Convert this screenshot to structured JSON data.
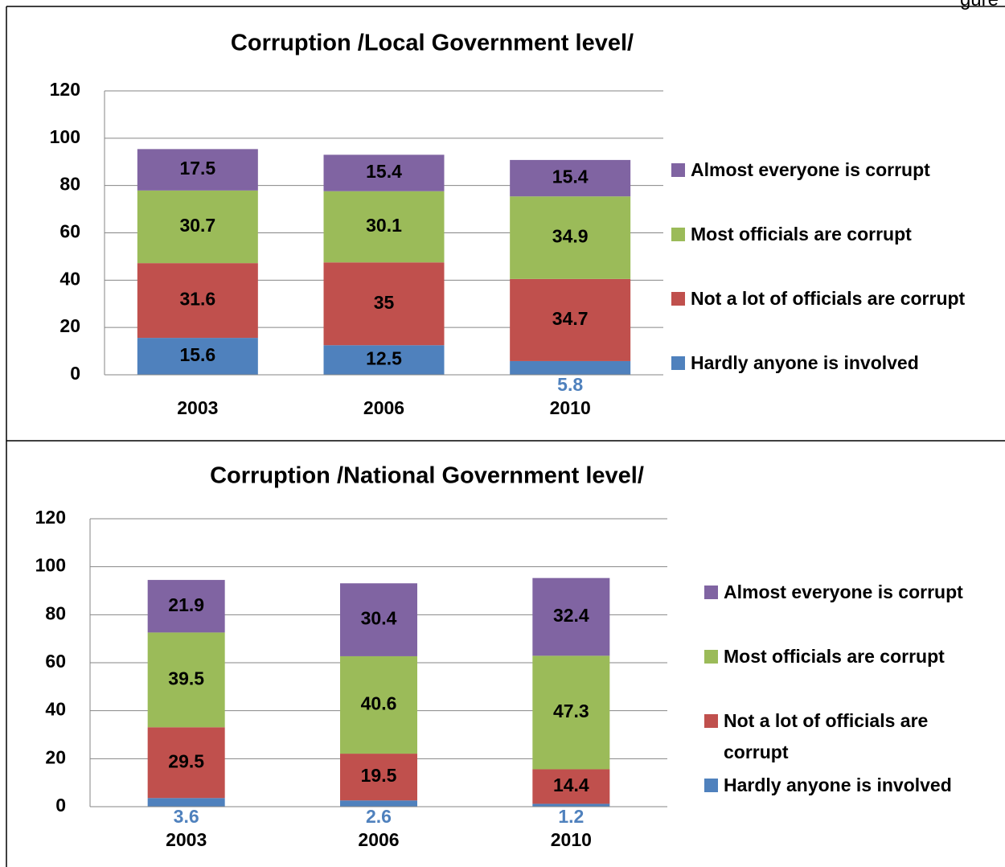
{
  "page_label": "gure",
  "chart_data": [
    {
      "type": "stacked_bar",
      "title": "Corruption /Local Government level/",
      "categories": [
        "2003",
        "2006",
        "2010"
      ],
      "series": [
        {
          "name": "Hardly anyone is involved",
          "color": "#4f81bd",
          "values": [
            15.6,
            12.5,
            5.8
          ]
        },
        {
          "name": "Not a lot of officials are corrupt",
          "color": "#c0504d",
          "values": [
            31.6,
            35,
            34.7
          ]
        },
        {
          "name": "Most officials are corrupt",
          "color": "#9bbb59",
          "values": [
            30.7,
            30.1,
            34.9
          ]
        },
        {
          "name": "Almost everyone is corrupt",
          "color": "#8064a2",
          "values": [
            17.5,
            15.4,
            15.4
          ]
        }
      ],
      "ylim": [
        0,
        120
      ],
      "yticks": [
        0,
        20,
        40,
        60,
        80,
        100,
        120
      ],
      "grid": true,
      "legend": "right"
    },
    {
      "type": "stacked_bar",
      "title": "Corruption /National Government level/",
      "categories": [
        "2003",
        "2006",
        "2010"
      ],
      "series": [
        {
          "name": "Hardly anyone is involved",
          "color": "#4f81bd",
          "values": [
            3.6,
            2.6,
            1.2
          ]
        },
        {
          "name": "Not a lot of officials are corrupt",
          "color": "#c0504d",
          "values": [
            29.5,
            19.5,
            14.4
          ]
        },
        {
          "name": "Most officials are corrupt",
          "color": "#9bbb59",
          "values": [
            39.5,
            40.6,
            47.3
          ]
        },
        {
          "name": "Almost everyone is corrupt",
          "color": "#8064a2",
          "values": [
            21.9,
            30.4,
            32.4
          ]
        }
      ],
      "ylim": [
        0,
        120
      ],
      "yticks": [
        0,
        20,
        40,
        60,
        80,
        100,
        120
      ],
      "grid": true,
      "legend": "right"
    }
  ]
}
